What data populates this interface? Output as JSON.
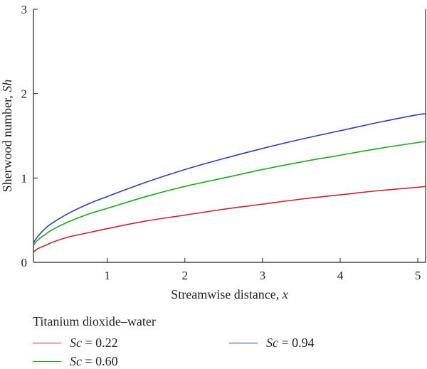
{
  "chart_data": {
    "type": "line",
    "title": "",
    "xlabel_text": "Streamwise distance, ",
    "xlabel_var": "x",
    "ylabel_text": "Sherwood number, ",
    "ylabel_var": "Sh",
    "xlim": [
      0.05,
      5.1
    ],
    "ylim": [
      0,
      3
    ],
    "x_ticks": [
      1,
      2,
      3,
      4,
      5
    ],
    "y_ticks": [
      0,
      1,
      2,
      3
    ],
    "grid": false,
    "legend_title": "Titanium dioxide–water",
    "legend_placement": "bottom",
    "series": [
      {
        "name": "Sc = 0.22",
        "param_symbol": "Sc",
        "param_value": "0.22",
        "color": "#c1272d",
        "x": [
          0.05,
          0.1,
          0.2,
          0.3,
          0.5,
          0.75,
          1.0,
          1.5,
          2.0,
          2.5,
          3.0,
          3.5,
          4.0,
          4.5,
          5.0,
          5.1
        ],
        "y": [
          0.12,
          0.16,
          0.2,
          0.24,
          0.3,
          0.35,
          0.4,
          0.49,
          0.56,
          0.63,
          0.69,
          0.75,
          0.8,
          0.85,
          0.89,
          0.9
        ]
      },
      {
        "name": "Sc = 0.60",
        "param_symbol": "Sc",
        "param_value": "0.60",
        "color": "#1aaa1a",
        "x": [
          0.05,
          0.1,
          0.2,
          0.3,
          0.5,
          0.75,
          1.0,
          1.5,
          2.0,
          2.5,
          3.0,
          3.5,
          4.0,
          4.5,
          5.0,
          5.1
        ],
        "y": [
          0.2,
          0.26,
          0.33,
          0.39,
          0.48,
          0.57,
          0.64,
          0.78,
          0.9,
          1.0,
          1.1,
          1.19,
          1.27,
          1.35,
          1.42,
          1.43
        ]
      },
      {
        "name": "Sc = 0.94",
        "param_symbol": "Sc",
        "param_value": "0.94",
        "color": "#2b3fbf",
        "x": [
          0.05,
          0.1,
          0.2,
          0.3,
          0.5,
          0.75,
          1.0,
          1.5,
          2.0,
          2.5,
          3.0,
          3.5,
          4.0,
          4.5,
          5.0,
          5.1
        ],
        "y": [
          0.23,
          0.3,
          0.4,
          0.47,
          0.58,
          0.69,
          0.78,
          0.95,
          1.1,
          1.23,
          1.35,
          1.46,
          1.56,
          1.66,
          1.75,
          1.76
        ]
      }
    ]
  }
}
